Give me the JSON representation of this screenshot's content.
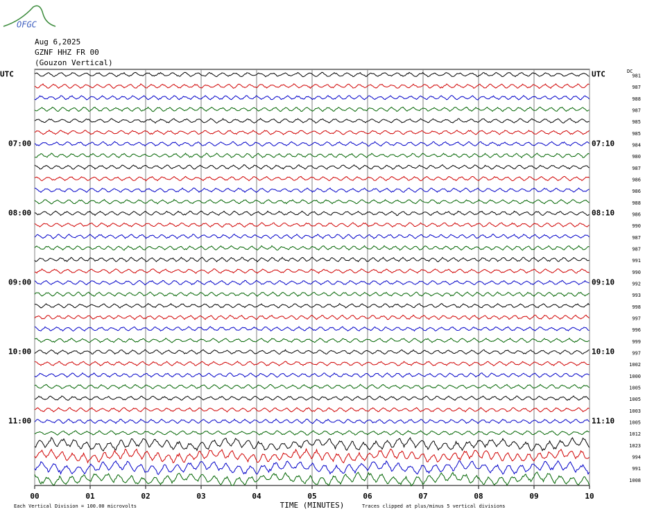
{
  "chart_data": {
    "type": "helicorder",
    "logo": "OFGC",
    "date": "Aug 6,2025",
    "station": "GZNF HHZ FR 00",
    "location": "(Gouzon Vertical)",
    "dc_header": "DC",
    "xlabel": "TIME (MINUTES)",
    "scale_note": "Each Vertical Division =  100.00 microvolts",
    "clip_note": "Traces clipped at plus/minus 5 vertical divisions",
    "xlim": [
      0,
      10
    ],
    "xticks": [
      {
        "value": 0,
        "label": "00"
      },
      {
        "value": 1,
        "label": "01"
      },
      {
        "value": 2,
        "label": "02"
      },
      {
        "value": 3,
        "label": "03"
      },
      {
        "value": 4,
        "label": "04"
      },
      {
        "value": 5,
        "label": "05"
      },
      {
        "value": 6,
        "label": "06"
      },
      {
        "value": 7,
        "label": "07"
      },
      {
        "value": 8,
        "label": "08"
      },
      {
        "value": 9,
        "label": "09"
      },
      {
        "value": 10,
        "label": "10"
      }
    ],
    "colors": [
      "#000000",
      "#d00000",
      "#0000c8",
      "#006400"
    ],
    "left_labels": [
      "UTC",
      null,
      null,
      null,
      null,
      null,
      "07:00",
      null,
      null,
      null,
      null,
      null,
      "08:00",
      null,
      null,
      null,
      null,
      null,
      "09:00",
      null,
      null,
      null,
      null,
      null,
      "10:00",
      null,
      null,
      null,
      null,
      null,
      "11:00",
      null,
      null,
      null,
      null,
      null
    ],
    "right_labels": [
      "UTC",
      null,
      null,
      null,
      null,
      null,
      "07:10",
      null,
      null,
      null,
      null,
      null,
      "08:10",
      null,
      null,
      null,
      null,
      null,
      "09:10",
      null,
      null,
      null,
      null,
      null,
      "10:10",
      null,
      null,
      null,
      null,
      null,
      "11:10",
      null,
      null,
      null,
      null,
      null
    ],
    "dc": [
      981,
      987,
      988,
      987,
      985,
      985,
      984,
      980,
      987,
      986,
      986,
      988,
      986,
      990,
      987,
      987,
      991,
      990,
      992,
      993,
      998,
      997,
      996,
      999,
      997,
      1002,
      1000,
      1005,
      1005,
      1003,
      1005,
      1012,
      1023,
      994,
      991,
      1008
    ]
  }
}
